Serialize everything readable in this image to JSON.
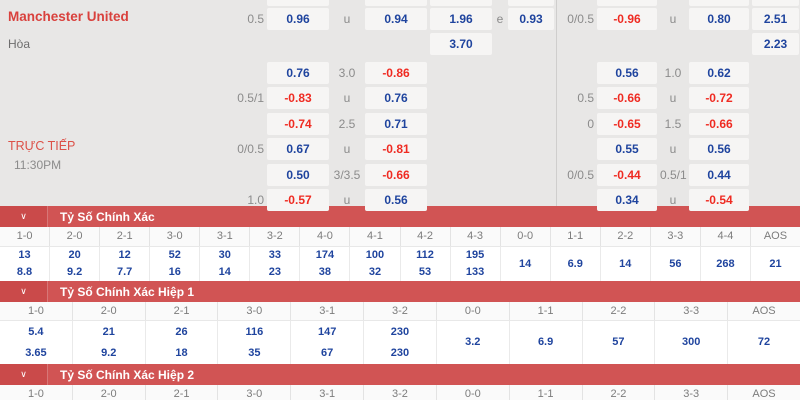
{
  "match": {
    "team": "Manchester United",
    "draw_label": "Hòa",
    "live_label": "TRỰC TIẾP",
    "time": "11:30PM"
  },
  "odds": {
    "left_rows": [
      {
        "hcp": "0.5",
        "a": "0.96",
        "l2": "u",
        "b": "0.94",
        "c": "1.96",
        "l3": "e",
        "d": "0.93"
      },
      {
        "c": "3.70"
      },
      {
        "a": "0.76",
        "l2": "3.0",
        "b": "-0.86"
      },
      {
        "hcp": "0.5/1",
        "a": "-0.83",
        "l2": "u",
        "b": "0.76"
      },
      {
        "a": "-0.74",
        "l2": "2.5",
        "b": "0.71"
      },
      {
        "hcp": "0/0.5",
        "a": "0.67",
        "l2": "u",
        "b": "-0.81"
      },
      {
        "a": "0.50",
        "l2": "3/3.5",
        "b": "-0.66"
      },
      {
        "hcp": "1.0",
        "a": "-0.57",
        "l2": "u",
        "b": "0.56"
      }
    ],
    "right_rows": [
      {
        "hcp": "0/0.5",
        "a": "-0.96",
        "l2": "u",
        "b": "0.80",
        "far": "2.51"
      },
      {
        "far": "2.23"
      },
      {
        "a": "0.56",
        "l2": "1.0",
        "b": "0.62"
      },
      {
        "hcp": "0.5",
        "a": "-0.66",
        "l2": "u",
        "b": "-0.72"
      },
      {
        "hcp": "0",
        "a": "-0.65",
        "l2": "1.5",
        "b": "-0.66"
      },
      {
        "a": "0.55",
        "l2": "u",
        "b": "0.56"
      },
      {
        "hcp": "0/0.5",
        "a": "-0.44",
        "l2": "0.5/1",
        "b": "0.44"
      },
      {
        "a": "0.34",
        "l2": "u",
        "b": "-0.54"
      }
    ]
  },
  "sections": [
    {
      "title": "Tỷ Số Chính Xác",
      "columns": [
        "1-0",
        "2-0",
        "2-1",
        "3-0",
        "3-1",
        "3-2",
        "4-0",
        "4-1",
        "4-2",
        "4-3",
        "0-0",
        "1-1",
        "2-2",
        "3-3",
        "4-4",
        "AOS"
      ],
      "odds": [
        [
          "13",
          "8.8"
        ],
        [
          "20",
          "9.2"
        ],
        [
          "12",
          "7.7"
        ],
        [
          "52",
          "16"
        ],
        [
          "30",
          "14"
        ],
        [
          "33",
          "23"
        ],
        [
          "174",
          "38"
        ],
        [
          "100",
          "32"
        ],
        [
          "112",
          "53"
        ],
        [
          "195",
          "133"
        ],
        [
          "14"
        ],
        [
          "6.9"
        ],
        [
          "14"
        ],
        [
          "56"
        ],
        [
          "268"
        ],
        [
          "21"
        ]
      ]
    },
    {
      "title": "Tỷ Số Chính Xác Hiệp 1",
      "columns": [
        "1-0",
        "2-0",
        "2-1",
        "3-0",
        "3-1",
        "3-2",
        "0-0",
        "1-1",
        "2-2",
        "3-3",
        "AOS"
      ],
      "odds": [
        [
          "5.4",
          "3.65"
        ],
        [
          "21",
          "9.2"
        ],
        [
          "26",
          "18"
        ],
        [
          "116",
          "35"
        ],
        [
          "147",
          "67"
        ],
        [
          "230",
          "230"
        ],
        [
          "3.2"
        ],
        [
          "6.9"
        ],
        [
          "57"
        ],
        [
          "300"
        ],
        [
          "72"
        ]
      ]
    },
    {
      "title": "Tỷ Số Chính Xác Hiệp 2",
      "columns": [
        "1-0",
        "2-0",
        "2-1",
        "3-0",
        "3-1",
        "3-2",
        "0-0",
        "1-1",
        "2-2",
        "3-3",
        "AOS"
      ],
      "odds": []
    }
  ],
  "icons": {
    "chevron_down": "∨"
  },
  "colors": {
    "page_bg": "#e8e7e6",
    "cell_bg": "#f6f5f4",
    "odds_blue": "#1f449e",
    "odds_red": "#ef2b22",
    "label_gray": "#8b8b8b",
    "team_red": "#d9413d",
    "live_red": "#dc5148",
    "section_bar": "#d15454",
    "section_bar_left": "#ca4a4a"
  }
}
